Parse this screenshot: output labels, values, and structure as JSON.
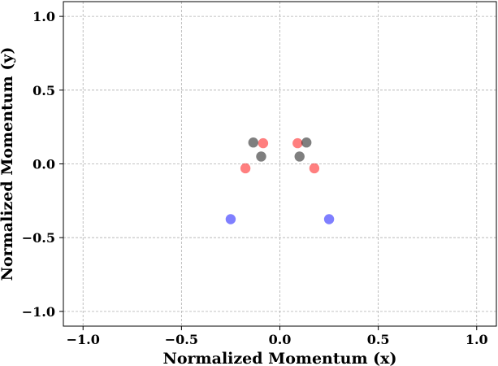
{
  "chart_data": {
    "type": "scatter",
    "title": "",
    "xlabel": "Normalized Momentum (x)",
    "ylabel": "Normalized Momentum (y)",
    "xlim": [
      -1.1,
      1.1
    ],
    "ylim": [
      -1.1,
      1.1
    ],
    "x_ticks": [
      -1.0,
      -0.5,
      0.0,
      0.5,
      1.0
    ],
    "y_ticks": [
      -1.0,
      -0.5,
      0.0,
      0.5,
      1.0
    ],
    "x_tick_labels": [
      "−1.0",
      "−0.5",
      "0.0",
      "0.5",
      "1.0"
    ],
    "y_tick_labels": [
      "−1.0",
      "−0.5",
      "0.0",
      "0.5",
      "1.0"
    ],
    "grid": true,
    "series": [
      {
        "color": "#ff0000",
        "alpha": 0.5,
        "points": [
          {
            "x": -0.085,
            "y": 0.14
          },
          {
            "x": 0.09,
            "y": 0.14
          },
          {
            "x": -0.175,
            "y": -0.03
          },
          {
            "x": 0.175,
            "y": -0.03
          }
        ]
      },
      {
        "color": "#000000",
        "alpha": 0.5,
        "points": [
          {
            "x": -0.135,
            "y": 0.145
          },
          {
            "x": 0.135,
            "y": 0.145
          },
          {
            "x": -0.095,
            "y": 0.05
          },
          {
            "x": 0.1,
            "y": 0.05
          }
        ]
      },
      {
        "color": "#0000ff",
        "alpha": 0.5,
        "points": [
          {
            "x": -0.25,
            "y": -0.375
          },
          {
            "x": 0.25,
            "y": -0.375
          }
        ]
      }
    ]
  }
}
